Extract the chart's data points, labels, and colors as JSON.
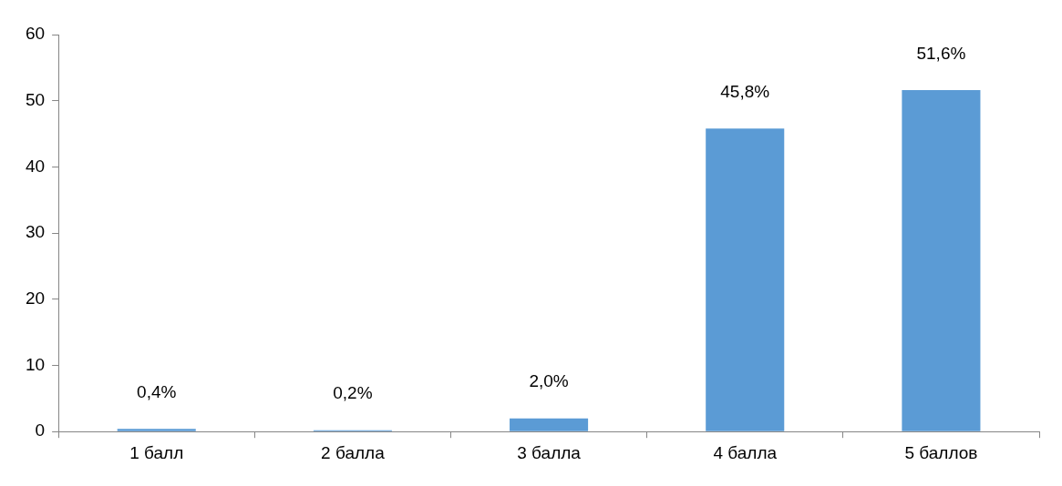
{
  "chart_data": {
    "type": "bar",
    "categories": [
      "1 балл",
      "2 балла",
      "3 балла",
      "4 балла",
      "5 баллов"
    ],
    "values": [
      0.4,
      0.2,
      2.0,
      45.8,
      51.6
    ],
    "value_labels": [
      "0,4%",
      "0,2%",
      "2,0%",
      "45,8%",
      "51,6%"
    ],
    "color": "#5b9bd5",
    "ylim": [
      0,
      60
    ],
    "yticks": [
      0,
      10,
      20,
      30,
      40,
      50,
      60
    ],
    "grid": false,
    "legend": false
  }
}
